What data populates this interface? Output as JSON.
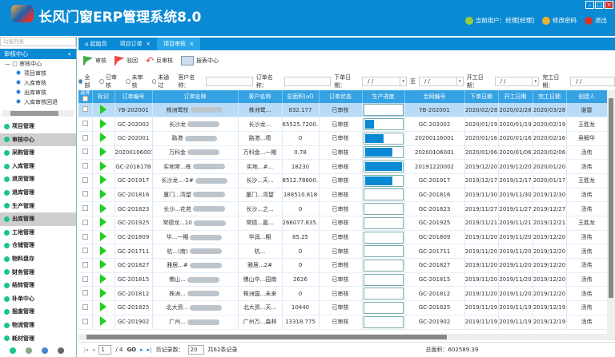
{
  "app": {
    "title": "长风门窗ERP管理系统8.0",
    "user": "当前用户：经理[经理]",
    "change_password": "修改密码",
    "logout": "退出"
  },
  "sidebar": {
    "search_placeholder": "功能列表",
    "panel_title": "审核中心",
    "tree": {
      "root": "审核中心",
      "items": [
        "项目审核",
        "入库审核",
        "出库审核",
        "入库审核回退"
      ]
    },
    "menu": [
      "项目管理",
      "审核中心",
      "采购管理",
      "入库管理",
      "退货管理",
      "退库管理",
      "生产管理",
      "出库管理",
      "工地管理",
      "仓储管理",
      "物料盘存",
      "财务管理",
      "结转管理",
      "补单中心",
      "报废管理",
      "物流管理",
      "耗材管理"
    ],
    "selected": [
      "审核中心",
      "出库管理"
    ]
  },
  "tabs": [
    {
      "label": "起始页",
      "active": false
    },
    {
      "label": "项目订单",
      "active": false,
      "close": "×"
    },
    {
      "label": "项目审核",
      "active": true,
      "close": "×"
    }
  ],
  "toolbar": {
    "approve": "审核",
    "reject": "驳回",
    "unapprove": "反审核",
    "report": "报表中心"
  },
  "filter": {
    "radios": [
      "全部",
      "已审核",
      "未审核",
      "未通过"
    ],
    "selected": "全部",
    "customer_label": "客户名称：",
    "order_label": "订单名称：",
    "order_date_label": "下单日期：",
    "to_label": "至",
    "start_label": "开工日期：",
    "finish_label": "完工日期：",
    "date_placeholder": "/ /"
  },
  "table": {
    "columns": [
      "选择",
      "标识",
      "订单编号",
      "订单名称",
      "客户名称",
      "总面积(㎡)",
      "订单状态",
      "生产进度",
      "合同编号",
      "下单日期",
      "开工日期",
      "完工日期",
      "创建人"
    ],
    "rows": [
      {
        "no": "YB-202001",
        "name": "株洲鹭校",
        "cust": "株洲鹭...",
        "area": "832.177",
        "status": "已审核",
        "progress": 0,
        "contract": "YB-202001",
        "d1": "2020/02/28",
        "d2": "2020/02/28",
        "d3": "2020/03/28",
        "by": "谌雷"
      },
      {
        "no": "GC-202002",
        "name": "长沙龙",
        "cust": "长沙龙...",
        "area": "65525.7200...",
        "status": "已审核",
        "progress": 25,
        "contract": "GC-202002",
        "d1": "2020/01/19",
        "d2": "2020/01/19",
        "d3": "2020/02/19",
        "by": "王胜龙"
      },
      {
        "no": "GC-202001",
        "name": "路港",
        "cust": "路港...墙",
        "area": "0",
        "status": "已审核",
        "progress": 50,
        "contract": "20200116001",
        "d1": "2020/01/16",
        "d2": "2020/01/16",
        "d3": "2020/02/16",
        "by": "吴解华"
      },
      {
        "no": "20200106001",
        "name": "万科金",
        "cust": "万科金...一期",
        "area": "0.78",
        "status": "已审核",
        "progress": 75,
        "contract": "20200106001",
        "d1": "2020/01/06",
        "d2": "2020/01/06",
        "d3": "2020/02/06",
        "by": "汤伟"
      },
      {
        "no": "GC-201817B",
        "name": "实地常...栋",
        "cust": "实地...#...",
        "area": "18230",
        "status": "已审核",
        "progress": 100,
        "contract": "20191220002",
        "d1": "2019/12/20",
        "d2": "2019/12/20",
        "d3": "2020/01/20",
        "by": "汤伟"
      },
      {
        "no": "GC-201917",
        "name": "长沙龙...-2#",
        "cust": "长沙...天...",
        "area": "8512.78600...",
        "status": "已审核",
        "progress": 75,
        "contract": "GC-201917",
        "d1": "2019/12/17",
        "d2": "2019/12/17",
        "d3": "2020/01/17",
        "by": "王胜龙"
      },
      {
        "no": "GC-201816",
        "name": "厦门...湾望",
        "cust": "厦门...湾望",
        "area": "188510.818",
        "status": "已审核",
        "progress": 0,
        "contract": "GC-201816",
        "d1": "2019/11/30",
        "d2": "2019/11/30",
        "d3": "2019/12/30",
        "by": "汤伟"
      },
      {
        "no": "GC-201823",
        "name": "长沙...花苑",
        "cust": "长沙...之...",
        "area": "0",
        "status": "已审核",
        "progress": 0,
        "contract": "GC-201823",
        "d1": "2019/11/27",
        "d2": "2019/11/27",
        "d3": "2019/12/27",
        "by": "汤伟"
      },
      {
        "no": "GC-201925",
        "name": "常德龙...10",
        "cust": "常德...嘉...",
        "area": "266077.835...",
        "status": "已审核",
        "progress": 0,
        "contract": "GC-201925",
        "d1": "2019/11/21",
        "d2": "2019/11/21",
        "d3": "2019/12/21",
        "by": "王胜龙"
      },
      {
        "no": "GC-201809",
        "name": "华...一期",
        "cust": "华润...期",
        "area": "85.25",
        "status": "已审核",
        "progress": 0,
        "contract": "GC-201809",
        "d1": "2019/11/20",
        "d2": "2019/11/20",
        "d3": "2019/12/20",
        "by": "汤伟"
      },
      {
        "no": "GC-201711",
        "name": "杭...(南)",
        "cust": "杭...",
        "area": "0",
        "status": "已审核",
        "progress": 0,
        "contract": "GC-201711",
        "d1": "2019/11/20",
        "d2": "2019/11/20",
        "d3": "2019/12/20",
        "by": "汤伟"
      },
      {
        "no": "GC-201827",
        "name": "雅居...#",
        "cust": "雅居...2#",
        "area": "0",
        "status": "已审核",
        "progress": 0,
        "contract": "GC-201827",
        "d1": "2019/11/20",
        "d2": "2019/11/20",
        "d3": "2019/12/20",
        "by": "汤伟"
      },
      {
        "no": "GC-201815",
        "name": "佛山...",
        "cust": "佛山中...园南",
        "area": "2626",
        "status": "已审核",
        "progress": 0,
        "contract": "GC-201815",
        "d1": "2019/11/20",
        "d2": "2019/11/20",
        "d3": "2019/12/20",
        "by": "汤伟"
      },
      {
        "no": "GC-201812",
        "name": "株洲...",
        "cust": "株洲国...未来",
        "area": "0",
        "status": "已审核",
        "progress": 0,
        "contract": "GC-201812",
        "d1": "2019/11/20",
        "d2": "2019/11/20",
        "d3": "2019/12/20",
        "by": "汤伟"
      },
      {
        "no": "GC-201825",
        "name": "北大资...",
        "cust": "北大资...天...",
        "area": "10440",
        "status": "已审核",
        "progress": 0,
        "contract": "GC-201825",
        "d1": "2019/11/19",
        "d2": "2019/11/19",
        "d3": "2019/12/19",
        "by": "汤伟"
      },
      {
        "no": "GC-201902",
        "name": "广州...",
        "cust": "广州万...森林",
        "area": "13318.775",
        "status": "已审核",
        "progress": 0,
        "contract": "GC-201902",
        "d1": "2019/11/19",
        "d2": "2019/11/19",
        "d3": "2019/12/19",
        "by": "汤伟"
      }
    ]
  },
  "pager": {
    "page": "1",
    "total_pages": "/ 4",
    "go": "GO",
    "page_size_label": "页记录数：",
    "page_size": "20",
    "total": "共62条记录",
    "total_area": "总面积：602589.39"
  },
  "colors": {
    "brand": "#0a8ad4",
    "header_row": "#35a2e3",
    "selected_row": "#b9dbf7",
    "play": "#1fd01f"
  }
}
